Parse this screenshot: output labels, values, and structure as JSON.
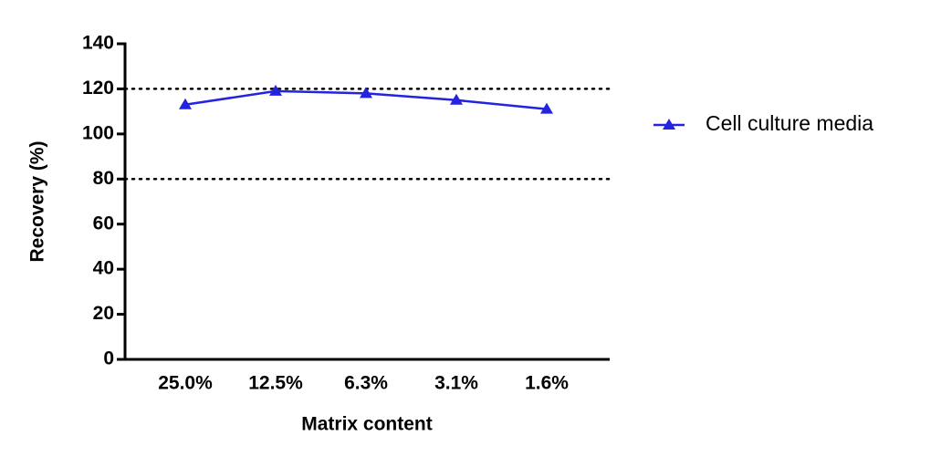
{
  "chart_data": {
    "type": "line",
    "x_label": "Matrix content",
    "y_label": "Recovery (%)",
    "categories": [
      "25.0%",
      "12.5%",
      "6.3%",
      "3.1%",
      "1.6%"
    ],
    "series": [
      {
        "name": "Cell culture media",
        "color": "#2323e0",
        "values": [
          113,
          119,
          118,
          115,
          111
        ]
      }
    ],
    "ylim": [
      0,
      140
    ],
    "yticks": [
      0,
      20,
      40,
      60,
      80,
      100,
      120,
      140
    ],
    "reference_lines": [
      80,
      120
    ],
    "legend": "right"
  }
}
